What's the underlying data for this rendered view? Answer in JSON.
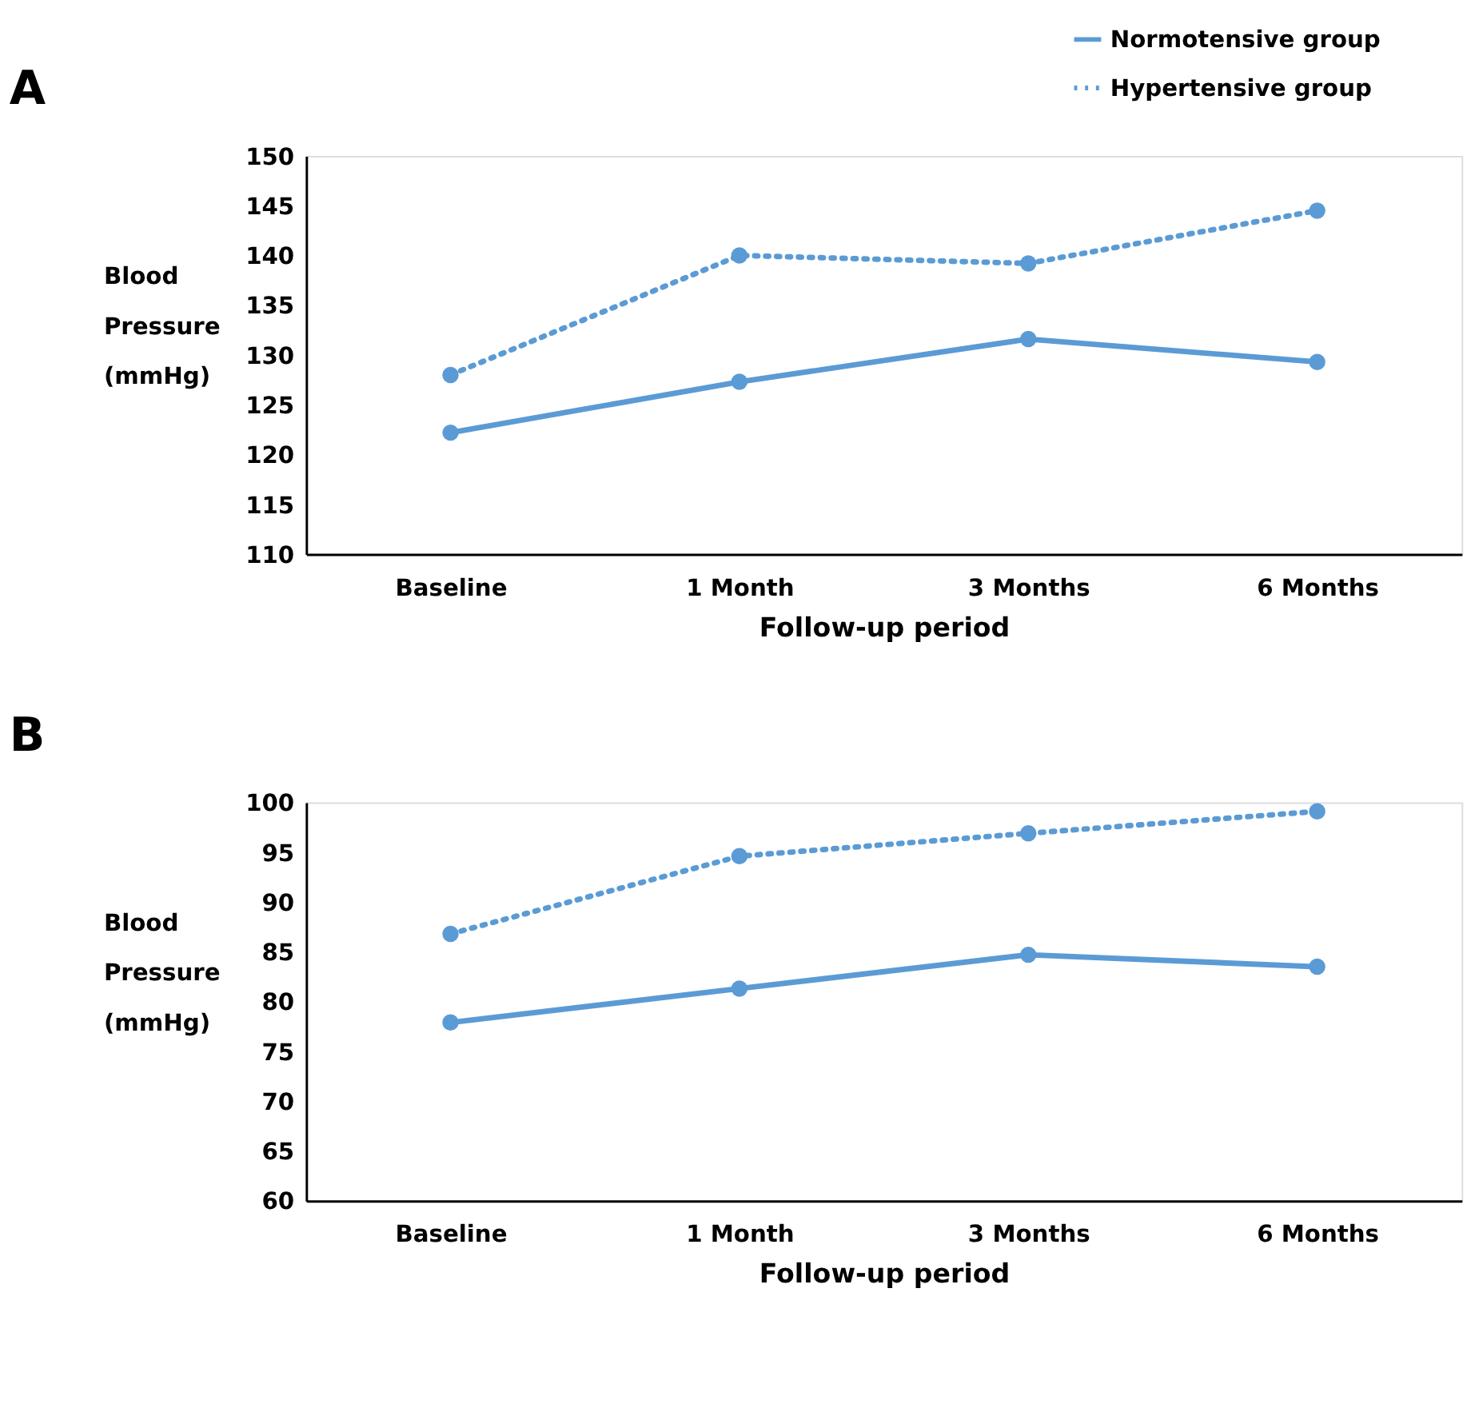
{
  "chart_data": [
    {
      "type": "line",
      "title": "A",
      "xlabel": "Follow-up period",
      "ylabel": "Blood Pressure (mmHg)",
      "categories": [
        "Baseline",
        "1 Month",
        "3 Months",
        "6 Months"
      ],
      "ylim": [
        110,
        150
      ],
      "yticks": [
        110,
        115,
        120,
        125,
        130,
        135,
        140,
        145,
        150
      ],
      "grid": false,
      "legend": "top right",
      "marker": "circle",
      "series": [
        {
          "name": "Normotensive group",
          "color": "#5b9bd5",
          "line_style": "solid",
          "values": [
            122.2,
            127.3,
            131.6,
            129.3
          ]
        },
        {
          "name": "Hypertensive group",
          "color": "#5b9bd5",
          "line_style": "dotted",
          "values": [
            128.0,
            140.0,
            139.2,
            144.5
          ]
        }
      ]
    },
    {
      "type": "line",
      "title": "B",
      "xlabel": "Follow-up period",
      "ylabel": "Blood Pressure (mmHg)",
      "categories": [
        "Baseline",
        "1 Month",
        "3 Months",
        "6 Months"
      ],
      "ylim": [
        60,
        100
      ],
      "yticks": [
        60,
        65,
        70,
        75,
        80,
        85,
        90,
        95,
        100
      ],
      "grid": false,
      "legend": "top right",
      "marker": "circle",
      "series": [
        {
          "name": "Normotensive group",
          "color": "#5b9bd5",
          "line_style": "solid",
          "values": [
            77.9,
            81.3,
            84.7,
            83.5
          ]
        },
        {
          "name": "Hypertensive group",
          "color": "#5b9bd5",
          "line_style": "dotted",
          "values": [
            86.8,
            94.6,
            96.9,
            99.1
          ]
        }
      ]
    }
  ]
}
